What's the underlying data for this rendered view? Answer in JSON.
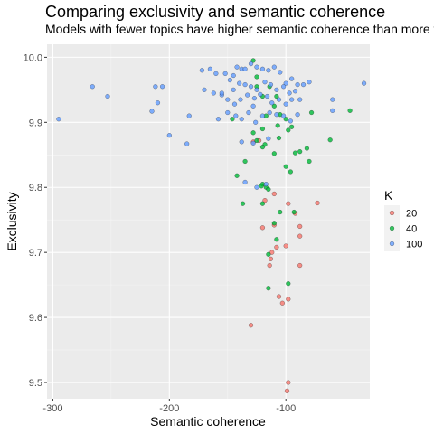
{
  "chart_data": {
    "type": "scatter",
    "title": "Comparing exclusivity and semantic coherence",
    "subtitle": "Models with fewer topics have higher semantic coherence than more topics",
    "xlabel": "Semantic coherence",
    "ylabel": "Exclusivity",
    "xlim": [
      -305,
      -28
    ],
    "ylim": [
      9.475,
      10.02
    ],
    "xticks": [
      -300,
      -200,
      -100
    ],
    "xtick_labels": [
      "-300",
      "-200",
      "-100"
    ],
    "yticks": [
      9.5,
      9.6,
      9.7,
      9.8,
      9.9,
      10.0
    ],
    "ytick_labels": [
      "9.5",
      "9.6",
      "9.7",
      "9.8",
      "9.9",
      "10.0"
    ],
    "grid": true,
    "legend": {
      "title": "K",
      "position": "right"
    },
    "series": [
      {
        "name": "20",
        "color": "#F8766D",
        "points": [
          [
            -128,
            9.87
          ],
          [
            -123,
            9.872
          ],
          [
            -110,
            9.79
          ],
          [
            -118,
            9.78
          ],
          [
            -98,
            9.775
          ],
          [
            -73,
            9.776
          ],
          [
            -92,
            9.76
          ],
          [
            -88,
            9.74
          ],
          [
            -110,
            9.742
          ],
          [
            -120,
            9.738
          ],
          [
            -88,
            9.725
          ],
          [
            -100,
            9.71
          ],
          [
            -108,
            9.708
          ],
          [
            -112,
            9.7
          ],
          [
            -113,
            9.69
          ],
          [
            -114,
            9.68
          ],
          [
            -88,
            9.68
          ],
          [
            -106,
            9.632
          ],
          [
            -103,
            9.622
          ],
          [
            -98,
            9.628
          ],
          [
            -130,
            9.588
          ],
          [
            -98,
            9.5
          ],
          [
            -99,
            9.487
          ]
        ]
      },
      {
        "name": "40",
        "color": "#00BA38",
        "points": [
          [
            -128,
            9.995
          ],
          [
            -125,
            9.97
          ],
          [
            -125,
            9.955
          ],
          [
            -114,
            9.955
          ],
          [
            -120,
            9.94
          ],
          [
            -108,
            9.94
          ],
          [
            -110,
            9.925
          ],
          [
            -146,
            9.905
          ],
          [
            -117,
            9.91
          ],
          [
            -105,
            9.912
          ],
          [
            -78,
            9.915
          ],
          [
            -45,
            9.918
          ],
          [
            -100,
            9.905
          ],
          [
            -107,
            9.895
          ],
          [
            -95,
            9.893
          ],
          [
            -120,
            9.89
          ],
          [
            -128,
            9.884
          ],
          [
            -98,
            9.888
          ],
          [
            -106,
            9.876
          ],
          [
            -125,
            9.872
          ],
          [
            -118,
            9.866
          ],
          [
            -120,
            9.862
          ],
          [
            -62,
            9.873
          ],
          [
            -82,
            9.86
          ],
          [
            -88,
            9.855
          ],
          [
            -92,
            9.853
          ],
          [
            -110,
            9.852
          ],
          [
            -80,
            9.84
          ],
          [
            -100,
            9.832
          ],
          [
            -135,
            9.84
          ],
          [
            -96,
            9.824
          ],
          [
            -142,
            9.818
          ],
          [
            -120,
            9.805
          ],
          [
            -121,
            9.802
          ],
          [
            -117,
            9.8
          ],
          [
            -115,
            9.797
          ],
          [
            -137,
            9.775
          ],
          [
            -120,
            9.775
          ],
          [
            -93,
            9.762
          ],
          [
            -105,
            9.762
          ],
          [
            -110,
            9.745
          ],
          [
            -108,
            9.72
          ],
          [
            -115,
            9.697
          ],
          [
            -98,
            9.652
          ],
          [
            -115,
            9.645
          ]
        ]
      },
      {
        "name": "100",
        "color": "#619CFF",
        "points": [
          [
            -295,
            9.905
          ],
          [
            -266,
            9.955
          ],
          [
            -253,
            9.94
          ],
          [
            -212,
            9.955
          ],
          [
            -206,
            9.955
          ],
          [
            -210,
            9.93
          ],
          [
            -215,
            9.917
          ],
          [
            -200,
            9.88
          ],
          [
            -185,
            9.867
          ],
          [
            -183,
            9.91
          ],
          [
            -172,
            9.98
          ],
          [
            -165,
            9.982
          ],
          [
            -160,
            9.975
          ],
          [
            -152,
            9.975
          ],
          [
            -170,
            9.95
          ],
          [
            -162,
            9.945
          ],
          [
            -155,
            9.942
          ],
          [
            -148,
            9.965
          ],
          [
            -145,
            9.972
          ],
          [
            -142,
            9.985
          ],
          [
            -138,
            9.982
          ],
          [
            -135,
            9.982
          ],
          [
            -130,
            9.99
          ],
          [
            -125,
            9.985
          ],
          [
            -120,
            9.982
          ],
          [
            -115,
            9.98
          ],
          [
            -110,
            9.985
          ],
          [
            -105,
            9.977
          ],
          [
            -100,
            9.96
          ],
          [
            -95,
            9.967
          ],
          [
            -90,
            9.958
          ],
          [
            -85,
            9.958
          ],
          [
            -80,
            9.962
          ],
          [
            -145,
            9.95
          ],
          [
            -140,
            9.96
          ],
          [
            -135,
            9.958
          ],
          [
            -130,
            9.955
          ],
          [
            -125,
            9.95
          ],
          [
            -118,
            9.962
          ],
          [
            -113,
            9.958
          ],
          [
            -108,
            9.95
          ],
          [
            -102,
            9.955
          ],
          [
            -97,
            9.945
          ],
          [
            -92,
            9.948
          ],
          [
            -150,
            9.935
          ],
          [
            -144,
            9.928
          ],
          [
            -139,
            9.935
          ],
          [
            -133,
            9.942
          ],
          [
            -127,
            9.937
          ],
          [
            -122,
            9.943
          ],
          [
            -116,
            9.94
          ],
          [
            -112,
            9.93
          ],
          [
            -106,
            9.935
          ],
          [
            -100,
            9.928
          ],
          [
            -95,
            9.935
          ],
          [
            -88,
            9.935
          ],
          [
            -150,
            9.915
          ],
          [
            -143,
            9.91
          ],
          [
            -138,
            9.905
          ],
          [
            -132,
            9.915
          ],
          [
            -126,
            9.9
          ],
          [
            -120,
            9.91
          ],
          [
            -114,
            9.915
          ],
          [
            -108,
            9.912
          ],
          [
            -102,
            9.91
          ],
          [
            -96,
            9.902
          ],
          [
            -90,
            9.912
          ],
          [
            -128,
            9.925
          ],
          [
            -138,
            9.87
          ],
          [
            -128,
            9.868
          ],
          [
            -115,
            9.875
          ],
          [
            -155,
            9.945
          ],
          [
            -60,
            9.935
          ],
          [
            -60,
            9.918
          ],
          [
            -33,
            9.96
          ],
          [
            -158,
            9.905
          ],
          [
            -135,
            9.808
          ],
          [
            -117,
            9.805
          ],
          [
            -125,
            9.8
          ]
        ]
      }
    ]
  }
}
